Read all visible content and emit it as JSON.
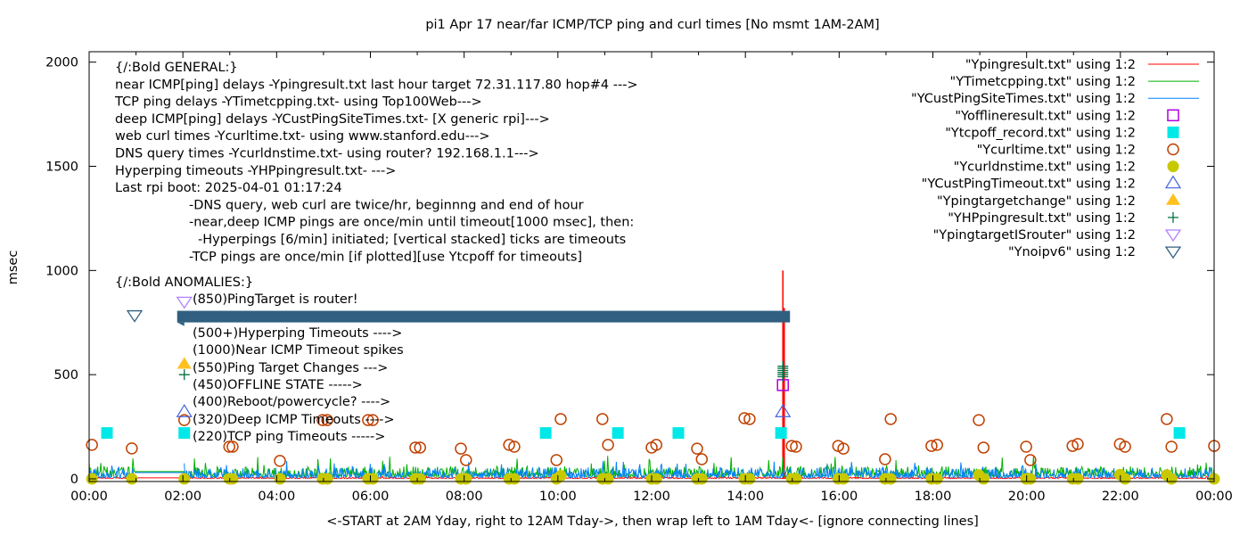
{
  "chart_data": {
    "type": "scatter",
    "title": "pi1 Apr 17  near/far ICMP/TCP ping and curl times [No msmt 1AM-2AM]",
    "xlabel": "<-START at 2AM Yday, right to 12AM Tday->, then wrap left to 1AM Tday<- [ignore connecting lines]",
    "ylabel": "msec",
    "xlim_hours": [
      0,
      24
    ],
    "ylim": [
      0,
      2050
    ],
    "x_tick_labels": [
      "00:00",
      "02:00",
      "04:00",
      "06:00",
      "08:00",
      "10:00",
      "12:00",
      "14:00",
      "16:00",
      "18:00",
      "20:00",
      "22:00",
      "00:00"
    ],
    "y_tick_labels": [
      "0",
      "500",
      "1000",
      "1500",
      "2000"
    ],
    "grid": false,
    "legend_placement": "top-right",
    "general_notes": [
      "{/:Bold GENERAL:}",
      "near ICMP[ping] delays -Ypingresult.txt last hour target 72.31.117.80 hop#4 --->",
      "TCP ping delays -YTimetcpping.txt- using Top100Web--->",
      "deep ICMP[ping] delays -YCustPingSiteTimes.txt- [X generic rpi]--->",
      "web curl times -Ycurltime.txt- using www.stanford.edu--->",
      "DNS query times -Ycurldnstime.txt- using router? 192.168.1.1--->",
      "Hyperping timeouts -YHPpingresult.txt- --->",
      "Last rpi boot: 2025-04-01 01:17:24",
      "-DNS query, web curl are twice/hr, beginnng and end of hour",
      "-near,deep ICMP pings are once/min until timeout[1000 msec], then:",
      "-Hyperpings [6/min] initiated; [vertical stacked] ticks are timeouts",
      "-TCP pings are once/min [if plotted][use Ytcpoff for timeouts]"
    ],
    "anomaly_title": "{/:Bold ANOMALIES:}",
    "anomaly_notes": [
      "(850)PingTarget is router!",
      "(500+)Hyperping Timeouts ---->",
      "(1000)Near ICMP Timeout spikes",
      "(550)Ping Target Changes --->",
      "(450)OFFLINE STATE ----->",
      "(400)Reboot/powercycle? ---->",
      "(320)Deep ICMP Timeouts ---->",
      "(220)TCP ping Timeouts ----->"
    ],
    "series": [
      {
        "name": "\"Ypingresult.txt\" using 1:2",
        "style": "line",
        "color": "#ff0000",
        "typical_msec": [
          2,
          8
        ],
        "spikes": [
          [
            14.8,
            1000
          ],
          [
            14.83,
            820
          ]
        ]
      },
      {
        "name": "\"YTimetcpping.txt\" using 1:2",
        "style": "line",
        "color": "#00b000",
        "typical_msec": [
          10,
          60
        ]
      },
      {
        "name": "\"YCustPingSiteTimes.txt\" using 1:2",
        "style": "line",
        "color": "#0080ff",
        "typical_msec": [
          5,
          55
        ]
      },
      {
        "name": "\"Yofflineresult.txt\" using 1:2",
        "style": "open-square",
        "color": "#b000e0",
        "points": [
          [
            14.8,
            450
          ]
        ]
      },
      {
        "name": "\"Ytcpoff_record.txt\" using 1:2",
        "style": "filled-square",
        "color": "#00e8e8",
        "points": [
          [
            0.38,
            220
          ],
          [
            2.03,
            220
          ],
          [
            9.74,
            220
          ],
          [
            11.28,
            220
          ],
          [
            12.57,
            220
          ],
          [
            14.76,
            220
          ],
          [
            23.26,
            220
          ]
        ]
      },
      {
        "name": "\"Ycurltime.txt\" using 1:2",
        "style": "open-circle",
        "color": "#c04000",
        "points": [
          [
            0.06,
            163
          ],
          [
            0.91,
            146
          ],
          [
            2.03,
            282
          ],
          [
            2.99,
            154
          ],
          [
            3.06,
            154
          ],
          [
            4.07,
            86
          ],
          [
            4.98,
            282
          ],
          [
            5.08,
            282
          ],
          [
            5.95,
            282
          ],
          [
            6.05,
            282
          ],
          [
            6.96,
            150
          ],
          [
            7.06,
            150
          ],
          [
            7.93,
            145
          ],
          [
            8.04,
            90
          ],
          [
            8.96,
            163
          ],
          [
            9.07,
            154
          ],
          [
            9.97,
            90
          ],
          [
            10.06,
            287
          ],
          [
            10.95,
            287
          ],
          [
            11.07,
            163
          ],
          [
            12.0,
            150
          ],
          [
            12.1,
            163
          ],
          [
            12.97,
            145
          ],
          [
            13.07,
            94
          ],
          [
            13.98,
            291
          ],
          [
            14.09,
            287
          ],
          [
            14.99,
            158
          ],
          [
            15.08,
            154
          ],
          [
            15.98,
            158
          ],
          [
            16.09,
            145
          ],
          [
            16.98,
            94
          ],
          [
            17.1,
            287
          ],
          [
            17.97,
            158
          ],
          [
            18.09,
            163
          ],
          [
            18.98,
            282
          ],
          [
            19.08,
            150
          ],
          [
            19.99,
            154
          ],
          [
            20.08,
            90
          ],
          [
            20.98,
            158
          ],
          [
            21.09,
            167
          ],
          [
            21.99,
            167
          ],
          [
            22.1,
            154
          ],
          [
            22.99,
            287
          ],
          [
            23.09,
            154
          ],
          [
            24.0,
            158
          ]
        ]
      },
      {
        "name": "\"Ycurldnstime.txt\" using 1:2",
        "style": "filled-circle",
        "color": "#c8c800",
        "points": [
          [
            0.06,
            0
          ],
          [
            0.91,
            0
          ],
          [
            2.03,
            0
          ],
          [
            2.99,
            0
          ],
          [
            3.06,
            0
          ],
          [
            4.07,
            0
          ],
          [
            4.98,
            0
          ],
          [
            5.08,
            0
          ],
          [
            5.95,
            0
          ],
          [
            6.05,
            0
          ],
          [
            6.96,
            0
          ],
          [
            7.06,
            0
          ],
          [
            7.93,
            0
          ],
          [
            8.04,
            0
          ],
          [
            8.96,
            0
          ],
          [
            9.07,
            0
          ],
          [
            9.97,
            0
          ],
          [
            10.06,
            15
          ],
          [
            10.95,
            0
          ],
          [
            11.07,
            0
          ],
          [
            12.0,
            0
          ],
          [
            12.1,
            0
          ],
          [
            12.97,
            0
          ],
          [
            13.07,
            0
          ],
          [
            13.98,
            0
          ],
          [
            14.09,
            0
          ],
          [
            14.99,
            0
          ],
          [
            15.08,
            0
          ],
          [
            15.98,
            0
          ],
          [
            16.09,
            0
          ],
          [
            16.98,
            0
          ],
          [
            17.1,
            0
          ],
          [
            17.97,
            0
          ],
          [
            18.09,
            0
          ],
          [
            18.98,
            18
          ],
          [
            19.08,
            0
          ],
          [
            19.99,
            0
          ],
          [
            20.08,
            0
          ],
          [
            20.98,
            0
          ],
          [
            21.09,
            0
          ],
          [
            21.99,
            20
          ],
          [
            22.1,
            0
          ],
          [
            22.99,
            18
          ],
          [
            23.09,
            0
          ],
          [
            24.0,
            0
          ]
        ]
      },
      {
        "name": "\"YCustPingTimeout.txt\" using 1:2",
        "style": "open-triangle-up",
        "color": "#4060e0",
        "points": [
          [
            2.03,
            320
          ],
          [
            14.8,
            320
          ]
        ]
      },
      {
        "name": "\"Ypingtargetchange\" using 1:2",
        "style": "filled-triangle-up",
        "color": "#ffc020",
        "points": [
          [
            2.03,
            550
          ]
        ]
      },
      {
        "name": "\"YHPpingresult.txt\" using 1:2",
        "style": "plus",
        "color": "#007040",
        "points": [
          [
            2.03,
            500
          ],
          [
            14.8,
            490
          ],
          [
            14.8,
            500
          ],
          [
            14.8,
            510
          ],
          [
            14.8,
            520
          ],
          [
            14.8,
            530
          ],
          [
            14.8,
            540
          ]
        ]
      },
      {
        "name": "\"YpingtargetISrouter\" using 1:2",
        "style": "open-triangle-down",
        "color": "#b080ff",
        "points": [
          [
            2.03,
            850
          ]
        ]
      },
      {
        "name": "\"Ynoipv6\" using 1:2",
        "style": "open-triangle-down",
        "color": "#305f80",
        "points": [
          [
            0.97,
            785
          ]
        ],
        "run": {
          "from_hours": 2.03,
          "to_hours": 14.8,
          "msec": 785,
          "every_minutes": 1
        }
      }
    ]
  }
}
